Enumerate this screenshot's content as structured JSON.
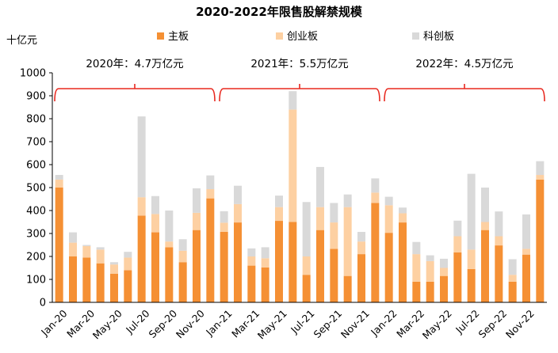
{
  "chart_data": {
    "type": "bar",
    "stacked": true,
    "title": "2020-2022年限售股解禁规模",
    "unit_label": "十亿元",
    "ylim": [
      0,
      1000
    ],
    "yticks": [
      0,
      100,
      200,
      300,
      400,
      500,
      600,
      700,
      800,
      900,
      1000
    ],
    "grid": false,
    "legend_position": "top",
    "categories": [
      "Jan-20",
      "Feb-20",
      "Mar-20",
      "Apr-20",
      "May-20",
      "Jun-20",
      "Jul-20",
      "Aug-20",
      "Sep-20",
      "Oct-20",
      "Nov-20",
      "Dec-20",
      "Jan-21",
      "Feb-21",
      "Mar-21",
      "Apr-21",
      "May-21",
      "Jun-21",
      "Jul-21",
      "Aug-21",
      "Sep-21",
      "Oct-21",
      "Nov-21",
      "Dec-21",
      "Jan-22",
      "Feb-22",
      "Mar-22",
      "Apr-22",
      "May-22",
      "Jun-22",
      "Jul-22",
      "Aug-22",
      "Sep-22",
      "Oct-22",
      "Nov-22",
      "Dec-22"
    ],
    "xtick_labels": [
      "Jan-20",
      "Mar-20",
      "May-20",
      "Jul-20",
      "Sep-20",
      "Nov-20",
      "Jan-21",
      "Mar-21",
      "May-21",
      "Jul-21",
      "Sep-21",
      "Nov-21",
      "Jan-22",
      "Mar-22",
      "May-22",
      "Jul-22",
      "Sep-22",
      "Nov-22"
    ],
    "series": [
      {
        "name": "主板",
        "color": "#F59034",
        "values": [
          500,
          200,
          195,
          170,
          125,
          140,
          378,
          305,
          240,
          175,
          315,
          453,
          307,
          348,
          160,
          152,
          355,
          350,
          120,
          315,
          233,
          115,
          210,
          433,
          303,
          348,
          90,
          90,
          115,
          218,
          145,
          315,
          248,
          90,
          208,
          535
        ]
      },
      {
        "name": "创业板",
        "color": "#FDD0A2",
        "values": [
          35,
          60,
          50,
          60,
          40,
          55,
          80,
          80,
          25,
          50,
          75,
          40,
          40,
          80,
          40,
          40,
          60,
          490,
          80,
          100,
          115,
          300,
          55,
          45,
          120,
          40,
          120,
          90,
          35,
          70,
          85,
          35,
          40,
          30,
          25,
          20
        ]
      },
      {
        "name": "科创板",
        "color": "#D9D9D9",
        "values": [
          20,
          45,
          5,
          10,
          10,
          25,
          352,
          78,
          135,
          50,
          107,
          60,
          50,
          80,
          35,
          48,
          50,
          80,
          237,
          175,
          85,
          55,
          42,
          62,
          37,
          25,
          53,
          25,
          40,
          68,
          330,
          150,
          108,
          68,
          150,
          60
        ]
      }
    ],
    "annotations": [
      {
        "label": "2020年：4.7万亿元",
        "from": "Jan-20",
        "to": "Dec-20"
      },
      {
        "label": "2021年：5.5万亿元",
        "from": "Jan-21",
        "to": "Dec-21"
      },
      {
        "label": "2022年：4.5万亿元",
        "from": "Jan-22",
        "to": "Dec-22"
      }
    ],
    "annotation_color": "#E8281F"
  }
}
